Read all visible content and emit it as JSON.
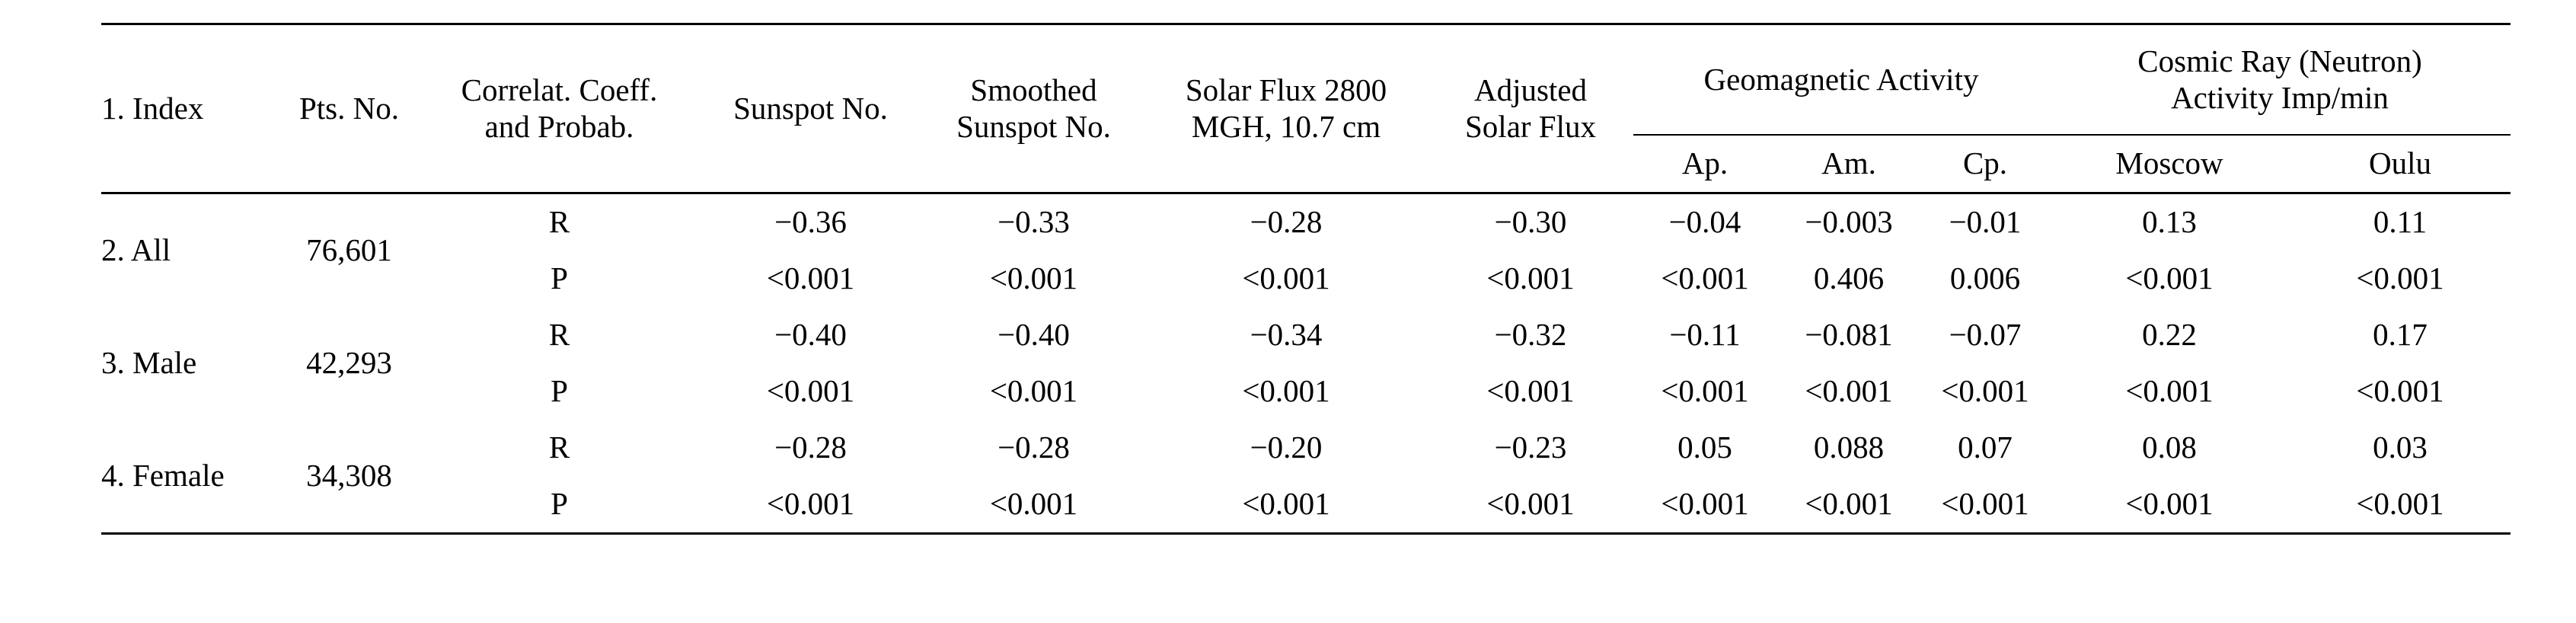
{
  "header": {
    "index": "1. Index",
    "pts": "Pts. No.",
    "correl_line1": "Correlat. Coeff.",
    "correl_line2": "and Probab.",
    "sunspot": "Sunspot No.",
    "smoothed_line1": "Smoothed",
    "smoothed_line2": "Sunspot No.",
    "solarflux_line1": "Solar Flux 2800",
    "solarflux_line2": "MGH, 10.7 cm",
    "adjusted_line1": "Adjusted",
    "adjusted_line2": "Solar Flux",
    "geomag": "Geomagnetic Activity",
    "cosmic_line1": "Cosmic Ray (Neutron)",
    "cosmic_line2": "Activity Imp/min",
    "ap": "Ap.",
    "am": "Am.",
    "cp": "Cp.",
    "moscow": "Moscow",
    "oulu": "Oulu"
  },
  "groups": [
    {
      "label": "2. All",
      "pts": "76,601",
      "rows": [
        {
          "stat": "R",
          "vals": [
            "−0.36",
            "−0.33",
            "−0.28",
            "−0.30",
            "−0.04",
            "−0.003",
            "−0.01",
            "0.13",
            "0.11"
          ]
        },
        {
          "stat": "P",
          "vals": [
            "<0.001",
            "<0.001",
            "<0.001",
            "<0.001",
            "<0.001",
            "0.406",
            "0.006",
            "<0.001",
            "<0.001"
          ]
        }
      ]
    },
    {
      "label": "3. Male",
      "pts": "42,293",
      "rows": [
        {
          "stat": "R",
          "vals": [
            "−0.40",
            "−0.40",
            "−0.34",
            "−0.32",
            "−0.11",
            "−0.081",
            "−0.07",
            "0.22",
            "0.17"
          ]
        },
        {
          "stat": "P",
          "vals": [
            "<0.001",
            "<0.001",
            "<0.001",
            "<0.001",
            "<0.001",
            "<0.001",
            "<0.001",
            "<0.001",
            "<0.001"
          ]
        }
      ]
    },
    {
      "label": "4. Female",
      "pts": "34,308",
      "rows": [
        {
          "stat": "R",
          "vals": [
            "−0.28",
            "−0.28",
            "−0.20",
            "−0.23",
            "0.05",
            "0.088",
            "0.07",
            "0.08",
            "0.03"
          ]
        },
        {
          "stat": "P",
          "vals": [
            "<0.001",
            "<0.001",
            "<0.001",
            "<0.001",
            "<0.001",
            "<0.001",
            "<0.001",
            "<0.001",
            "<0.001"
          ]
        }
      ]
    }
  ]
}
